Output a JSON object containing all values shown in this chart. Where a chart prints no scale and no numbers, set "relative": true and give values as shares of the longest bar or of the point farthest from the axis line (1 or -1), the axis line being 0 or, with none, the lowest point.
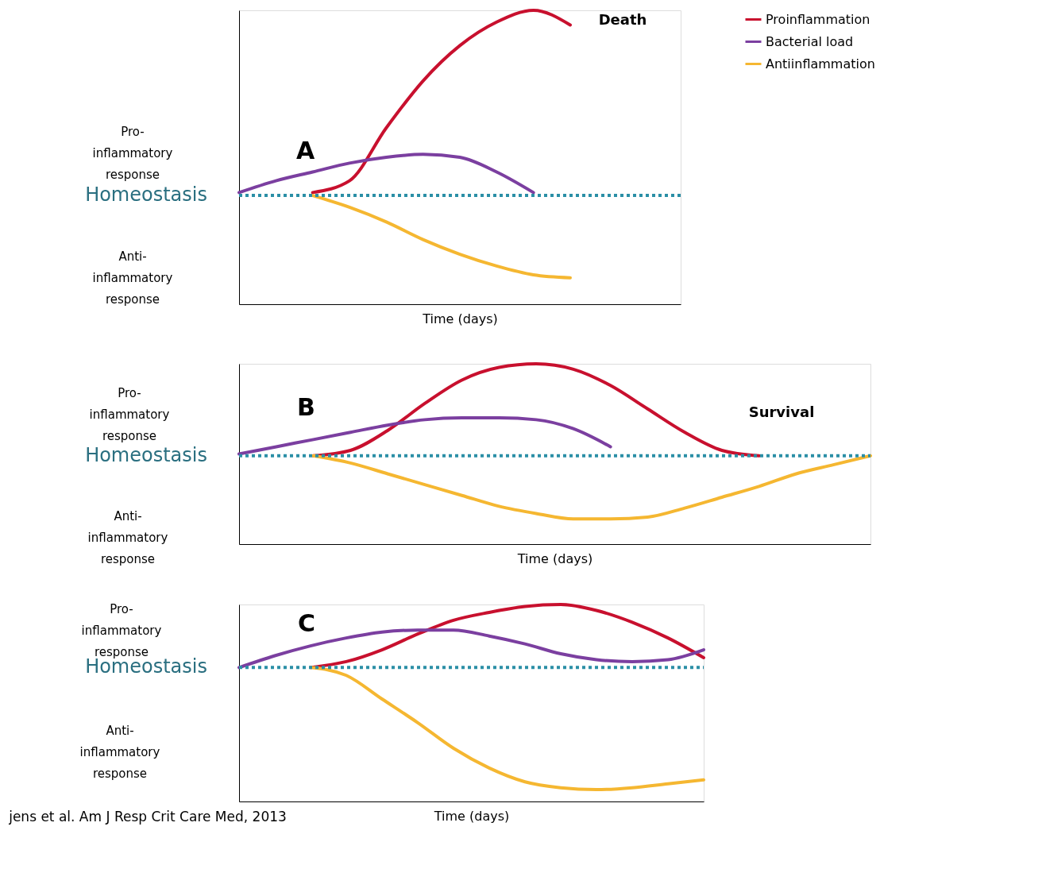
{
  "chart_data": [
    {
      "type": "line",
      "title": "A",
      "xlabel": "Time (days)",
      "relative": true,
      "legend": "right",
      "categories": [
        null,
        null,
        null,
        null,
        null,
        null,
        null,
        null,
        null,
        null,
        null,
        null,
        null
      ],
      "series": [
        {
          "name": "Proinflammation",
          "color": "#c8102e",
          "values": [
            null,
            null,
            0.38,
            0.42,
            0.6,
            0.76,
            0.88,
            0.96,
            1.0,
            0.95,
            null,
            null,
            null
          ]
        },
        {
          "name": "Bacterial load",
          "color": "#7b3fa0",
          "values": [
            0.38,
            0.42,
            0.45,
            0.48,
            0.5,
            0.51,
            0.5,
            0.45,
            0.38,
            null,
            null,
            null,
            null
          ]
        },
        {
          "name": "Antiinflammation",
          "color": "#f5b731",
          "values": [
            null,
            null,
            0.37,
            0.33,
            0.28,
            0.22,
            0.17,
            0.13,
            0.1,
            0.09,
            null,
            null,
            null
          ]
        }
      ],
      "ref_lines": [
        {
          "axis": "y",
          "value": 0.37,
          "label": "Homeostasis",
          "color": "#2b8fa6",
          "line_style": "dotted"
        }
      ],
      "annotations": [
        "Pro-inflammatory response",
        "Anti-inflammatory response",
        "Death"
      ]
    },
    {
      "type": "line",
      "title": "B",
      "xlabel": "Time (days)",
      "relative": true,
      "categories": [
        null,
        null,
        null,
        null,
        null,
        null,
        null,
        null,
        null,
        null,
        null,
        null,
        null,
        null,
        null,
        null,
        null,
        null
      ],
      "series": [
        {
          "color": "#c8102e",
          "values": [
            null,
            null,
            0.49,
            0.52,
            0.63,
            0.78,
            0.91,
            0.98,
            1.0,
            0.97,
            0.88,
            0.75,
            0.62,
            0.52,
            0.49,
            null,
            null,
            null
          ]
        },
        {
          "color": "#7b3fa0",
          "values": [
            0.5,
            0.54,
            0.58,
            0.62,
            0.66,
            0.69,
            0.7,
            0.7,
            0.69,
            0.64,
            0.54,
            null,
            null,
            null,
            null,
            null,
            null,
            null
          ]
        },
        {
          "color": "#f5b731",
          "values": [
            null,
            null,
            0.49,
            0.45,
            0.39,
            0.33,
            0.27,
            0.21,
            0.17,
            0.14,
            0.14,
            0.15,
            0.2,
            0.26,
            0.32,
            0.39,
            0.44,
            0.49
          ]
        }
      ],
      "ref_lines": [
        {
          "axis": "y",
          "value": 0.49,
          "label": "Homeostasis",
          "color": "#2b8fa6",
          "line_style": "dotted"
        }
      ],
      "annotations": [
        "Pro-inflammatory response",
        "Anti-inflammatory response",
        "Survival"
      ]
    },
    {
      "type": "line",
      "title": "C",
      "xlabel": "Time (days)",
      "relative": true,
      "categories": [
        null,
        null,
        null,
        null,
        null,
        null,
        null,
        null,
        null,
        null,
        null,
        null,
        null,
        null
      ],
      "series": [
        {
          "color": "#c8102e",
          "values": [
            null,
            null,
            0.68,
            0.71,
            0.77,
            0.85,
            0.92,
            0.96,
            0.99,
            1.0,
            0.97,
            0.91,
            0.83,
            0.73
          ]
        },
        {
          "color": "#7b3fa0",
          "values": [
            0.68,
            0.74,
            0.79,
            0.83,
            0.86,
            0.87,
            0.87,
            0.84,
            0.8,
            0.75,
            0.72,
            0.71,
            0.72,
            0.77
          ]
        },
        {
          "color": "#f5b731",
          "values": [
            null,
            null,
            0.68,
            0.64,
            0.52,
            0.4,
            0.27,
            0.17,
            0.1,
            0.07,
            0.06,
            0.07,
            0.09,
            0.11
          ]
        }
      ],
      "ref_lines": [
        {
          "axis": "y",
          "value": 0.68,
          "label": "Homeostasis",
          "color": "#2b8fa6",
          "line_style": "dotted"
        }
      ],
      "annotations": [
        "Pro-inflammatory response",
        "Anti-inflammatory response",
        "jens et al. Am J Resp Crit Care Med, 2013"
      ]
    }
  ]
}
